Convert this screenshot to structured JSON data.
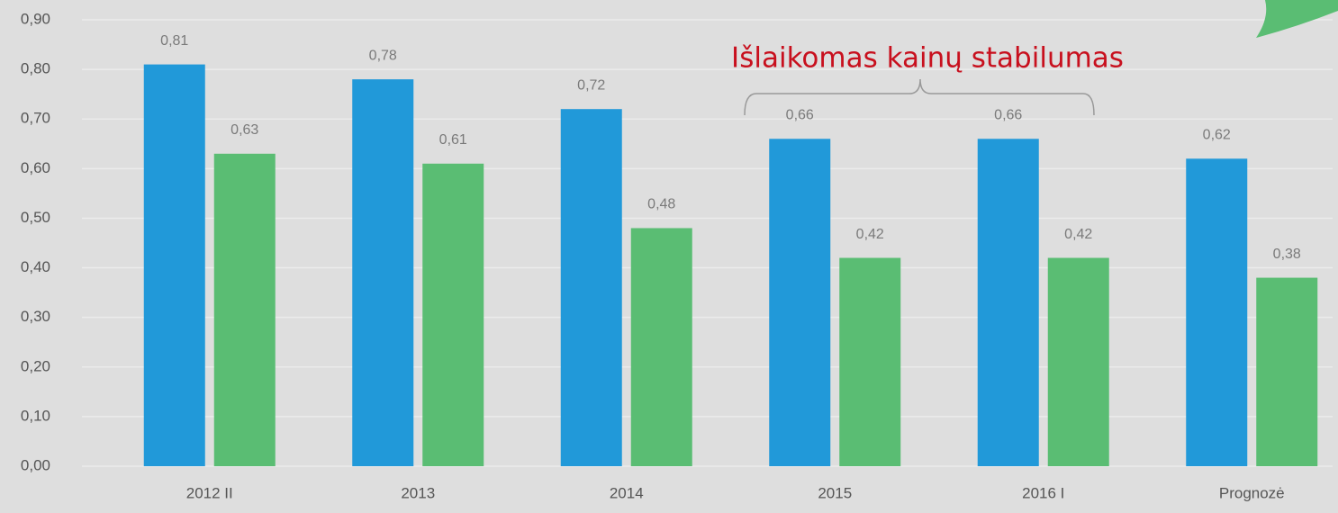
{
  "chart_data": {
    "type": "bar",
    "annotation": "Išlaikomas kainų stabilumas",
    "categories": [
      "2012 II",
      "2013",
      "2014",
      "2015",
      "2016 I",
      "Prognozė"
    ],
    "series": [
      {
        "color": "#2199d9",
        "values": [
          0.81,
          0.78,
          0.72,
          0.66,
          0.66,
          0.62
        ],
        "value_labels": [
          "0,81",
          "0,78",
          "0,72",
          "0,66",
          "0,66",
          "0,62"
        ]
      },
      {
        "color": "#5abd73",
        "values": [
          0.63,
          0.61,
          0.48,
          0.42,
          0.42,
          0.38
        ],
        "value_labels": [
          "0,63",
          "0,61",
          "0,48",
          "0,42",
          "0,42",
          "0,38"
        ]
      }
    ],
    "ylim": [
      0,
      0.9
    ],
    "yticks": [
      {
        "value": 0,
        "label": "0,00"
      },
      {
        "value": 0.1,
        "label": "0,10"
      },
      {
        "value": 0.2,
        "label": "0,20"
      },
      {
        "value": 0.3,
        "label": "0,30"
      },
      {
        "value": 0.4,
        "label": "0,40"
      },
      {
        "value": 0.5,
        "label": "0,50"
      },
      {
        "value": 0.6,
        "label": "0,60"
      },
      {
        "value": 0.7,
        "label": "0,70"
      },
      {
        "value": 0.8,
        "label": "0,80"
      },
      {
        "value": 0.9,
        "label": "0,90"
      }
    ],
    "grid": true
  }
}
